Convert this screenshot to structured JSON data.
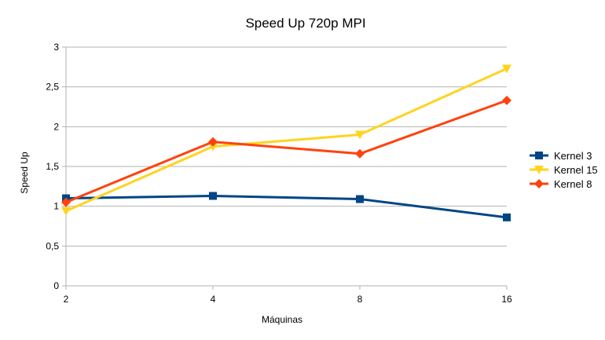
{
  "chart_data": {
    "type": "line",
    "title": "Speed Up 720p MPI",
    "xlabel": "Máquinas",
    "ylabel": "Speed Up",
    "categories": [
      "2",
      "4",
      "8",
      "16"
    ],
    "ylim": [
      0,
      3
    ],
    "yticks": [
      "0",
      "0,5",
      "1",
      "1,5",
      "2",
      "2,5",
      "3"
    ],
    "grid": true,
    "legend_position": "right",
    "series": [
      {
        "name": "Kernel 3",
        "values": [
          1.1,
          1.13,
          1.09,
          0.86
        ],
        "color": "#004586",
        "marker": "square"
      },
      {
        "name": "Kernel 15",
        "values": [
          0.94,
          1.75,
          1.9,
          2.73
        ],
        "color": "#ffd320",
        "marker": "triangle-down"
      },
      {
        "name": "Kernel 8",
        "values": [
          1.05,
          1.81,
          1.66,
          2.33
        ],
        "color": "#ff420e",
        "marker": "diamond"
      }
    ]
  }
}
